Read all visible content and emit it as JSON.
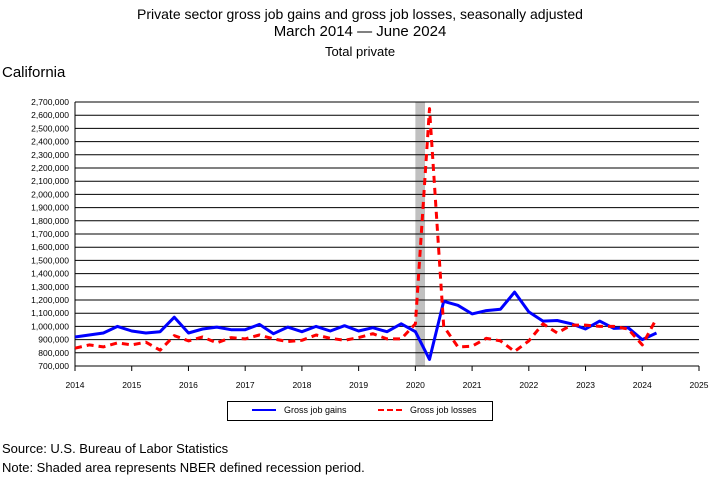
{
  "title": {
    "line1": "Private sector gross job gains and gross job losses, seasonally adjusted",
    "line2": "March 2014 — June 2024",
    "line3": "Total private"
  },
  "region_label": "California",
  "footer": {
    "source": "Source: U.S. Bureau of Labor Statistics",
    "note": "Note: Shaded area represents NBER defined recession period."
  },
  "colors": {
    "gains": "#0000ff",
    "losses": "#ff0000",
    "recession": "#c0c0c0",
    "grid": "#000000"
  },
  "chart_data": {
    "type": "line",
    "title": "Private sector gross job gains and gross job losses, seasonally adjusted",
    "subtitle": "March 2014 — June 2024",
    "xlabel": "",
    "ylabel": "",
    "xlim": [
      2014,
      2025
    ],
    "ylim": [
      700000,
      2700000
    ],
    "ytick_step": 100000,
    "xticks": [
      2014,
      2015,
      2016,
      2017,
      2018,
      2019,
      2020,
      2021,
      2022,
      2023,
      2024,
      2025
    ],
    "grid": "horizontal",
    "legend_placement": "bottom",
    "recession_band": [
      2020.0,
      2020.17
    ],
    "x": [
      2014.0,
      2014.25,
      2014.5,
      2014.75,
      2015.0,
      2015.25,
      2015.5,
      2015.75,
      2016.0,
      2016.25,
      2016.5,
      2016.75,
      2017.0,
      2017.25,
      2017.5,
      2017.75,
      2018.0,
      2018.25,
      2018.5,
      2018.75,
      2019.0,
      2019.25,
      2019.5,
      2019.75,
      2020.0,
      2020.25,
      2020.5,
      2020.75,
      2021.0,
      2021.25,
      2021.5,
      2021.75,
      2022.0,
      2022.25,
      2022.5,
      2022.75,
      2023.0,
      2023.25,
      2023.5,
      2023.75,
      2024.0,
      2024.25
    ],
    "series": [
      {
        "name": "Gross job gains",
        "style": "solid",
        "values": [
          920000,
          935000,
          950000,
          1000000,
          965000,
          950000,
          960000,
          1070000,
          950000,
          980000,
          995000,
          975000,
          975000,
          1015000,
          945000,
          995000,
          960000,
          1000000,
          965000,
          1005000,
          965000,
          990000,
          960000,
          1020000,
          960000,
          750000,
          1190000,
          1160000,
          1095000,
          1120000,
          1130000,
          1260000,
          1110000,
          1040000,
          1045000,
          1020000,
          980000,
          1040000,
          985000,
          990000,
          900000,
          950000
        ]
      },
      {
        "name": "Gross job losses",
        "style": "dashed",
        "values": [
          835000,
          860000,
          845000,
          875000,
          860000,
          880000,
          820000,
          930000,
          890000,
          920000,
          875000,
          915000,
          905000,
          935000,
          905000,
          885000,
          895000,
          935000,
          910000,
          895000,
          915000,
          945000,
          905000,
          905000,
          1020000,
          2650000,
          1000000,
          845000,
          850000,
          910000,
          890000,
          810000,
          890000,
          1020000,
          950000,
          1010000,
          1010000,
          1000000,
          1000000,
          980000,
          860000,
          1060000
        ]
      }
    ],
    "ytick_labels": [
      "700,000",
      "800,000",
      "900,000",
      "1,000,000",
      "1,100,000",
      "1,200,000",
      "1,300,000",
      "1,400,000",
      "1,500,000",
      "1,600,000",
      "1,700,000",
      "1,800,000",
      "1,900,000",
      "2,000,000",
      "2,100,000",
      "2,200,000",
      "2,300,000",
      "2,400,000",
      "2,500,000",
      "2,600,000",
      "2,700,000"
    ],
    "xtick_labels": [
      "2014",
      "2015",
      "2016",
      "2017",
      "2018",
      "2019",
      "2020",
      "2021",
      "2022",
      "2023",
      "2024",
      "2025"
    ]
  }
}
